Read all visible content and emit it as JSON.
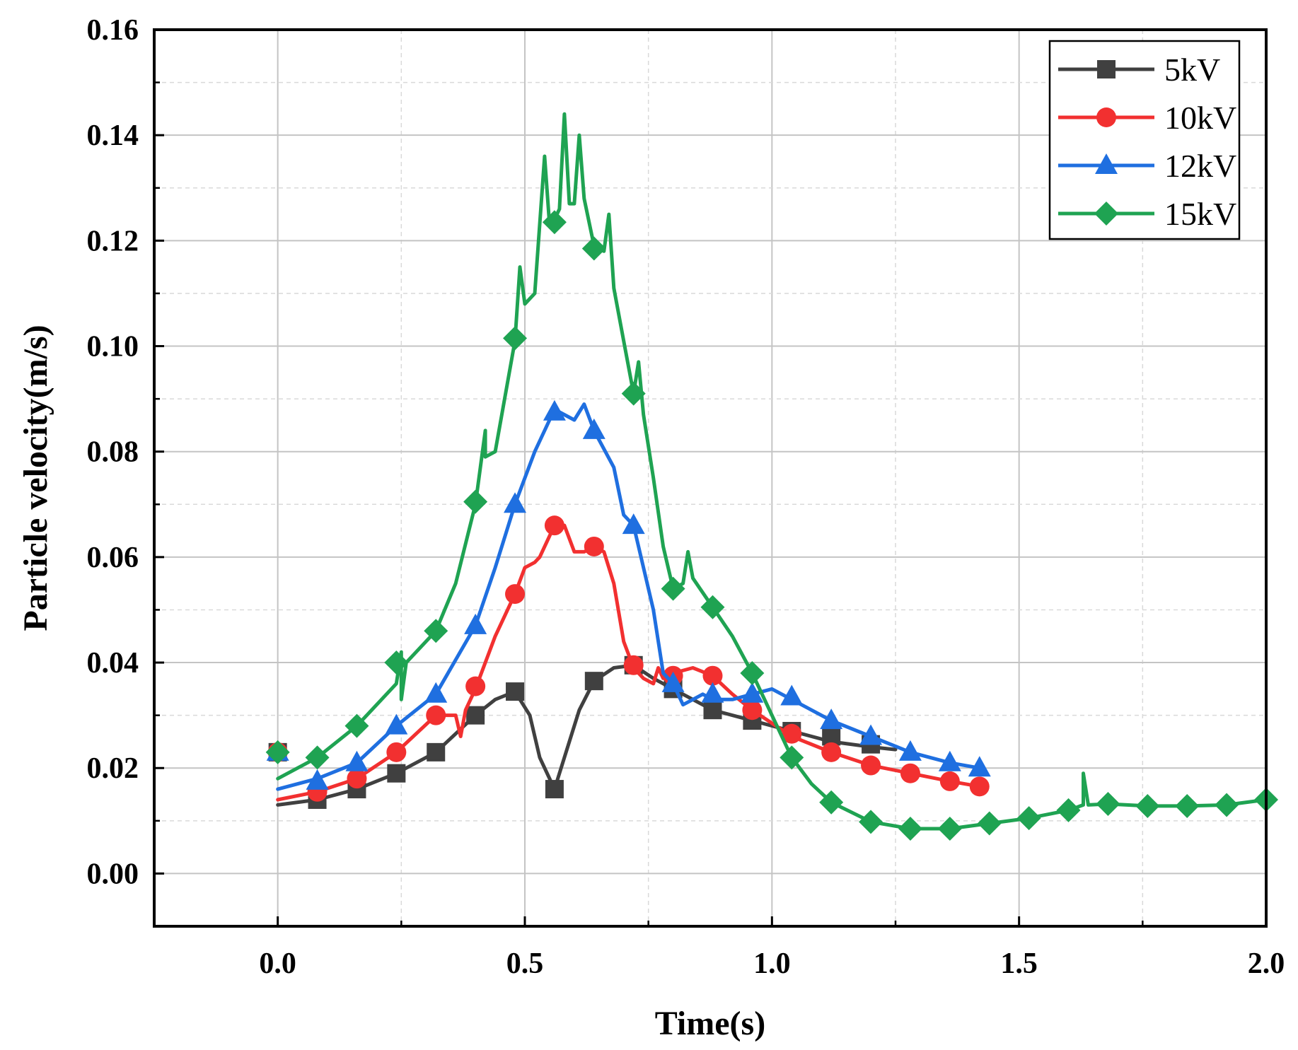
{
  "chart_data": {
    "type": "line",
    "title": "",
    "xlabel": "Time(s)",
    "ylabel": "Particle velocity(m/s)",
    "xlim": [
      -0.25,
      2.0
    ],
    "ylim": [
      -0.01,
      0.16
    ],
    "xticks": [
      0.0,
      0.5,
      1.0,
      1.5,
      2.0
    ],
    "xtick_labels": [
      "0.0",
      "0.5",
      "1.0",
      "1.5",
      "2.0"
    ],
    "yticks": [
      0.0,
      0.02,
      0.04,
      0.06,
      0.08,
      0.1,
      0.12,
      0.14,
      0.16
    ],
    "ytick_labels": [
      "0.00",
      "0.02",
      "0.04",
      "0.06",
      "0.08",
      "0.10",
      "0.12",
      "0.14",
      "0.16"
    ],
    "grid": true,
    "legend_position": "top-right",
    "series": [
      {
        "name": "5kV",
        "color": "#404040",
        "marker": "square",
        "line": [
          [
            0.0,
            0.013
          ],
          [
            0.08,
            0.014
          ],
          [
            0.16,
            0.016
          ],
          [
            0.24,
            0.019
          ],
          [
            0.32,
            0.023
          ],
          [
            0.4,
            0.03
          ],
          [
            0.44,
            0.033
          ],
          [
            0.48,
            0.0345
          ],
          [
            0.51,
            0.03
          ],
          [
            0.53,
            0.022
          ],
          [
            0.56,
            0.016
          ],
          [
            0.58,
            0.022
          ],
          [
            0.61,
            0.031
          ],
          [
            0.64,
            0.0365
          ],
          [
            0.68,
            0.039
          ],
          [
            0.72,
            0.0395
          ],
          [
            0.76,
            0.037
          ],
          [
            0.8,
            0.035
          ],
          [
            0.88,
            0.031
          ],
          [
            0.96,
            0.029
          ],
          [
            1.04,
            0.027
          ],
          [
            1.12,
            0.025
          ],
          [
            1.2,
            0.024
          ],
          [
            1.25,
            0.0235
          ]
        ],
        "markers": [
          [
            0.0,
            0.023
          ],
          [
            0.08,
            0.014
          ],
          [
            0.16,
            0.016
          ],
          [
            0.24,
            0.019
          ],
          [
            0.32,
            0.023
          ],
          [
            0.4,
            0.03
          ],
          [
            0.48,
            0.0345
          ],
          [
            0.56,
            0.016
          ],
          [
            0.64,
            0.0365
          ],
          [
            0.72,
            0.0395
          ],
          [
            0.8,
            0.035
          ],
          [
            0.88,
            0.031
          ],
          [
            0.96,
            0.029
          ],
          [
            1.04,
            0.027
          ],
          [
            1.12,
            0.026
          ],
          [
            1.2,
            0.0245
          ]
        ]
      },
      {
        "name": "10kV",
        "color": "#f23030",
        "marker": "circle",
        "line": [
          [
            0.0,
            0.014
          ],
          [
            0.08,
            0.0155
          ],
          [
            0.16,
            0.018
          ],
          [
            0.24,
            0.023
          ],
          [
            0.32,
            0.03
          ],
          [
            0.36,
            0.03
          ],
          [
            0.37,
            0.026
          ],
          [
            0.38,
            0.031
          ],
          [
            0.4,
            0.035
          ],
          [
            0.44,
            0.045
          ],
          [
            0.48,
            0.053
          ],
          [
            0.5,
            0.058
          ],
          [
            0.52,
            0.059
          ],
          [
            0.53,
            0.06
          ],
          [
            0.56,
            0.066
          ],
          [
            0.58,
            0.066
          ],
          [
            0.6,
            0.061
          ],
          [
            0.62,
            0.061
          ],
          [
            0.64,
            0.062
          ],
          [
            0.66,
            0.061
          ],
          [
            0.68,
            0.055
          ],
          [
            0.7,
            0.044
          ],
          [
            0.72,
            0.039
          ],
          [
            0.74,
            0.037
          ],
          [
            0.76,
            0.036
          ],
          [
            0.77,
            0.039
          ],
          [
            0.78,
            0.037
          ],
          [
            0.8,
            0.038
          ],
          [
            0.84,
            0.039
          ],
          [
            0.88,
            0.0375
          ],
          [
            0.92,
            0.034
          ],
          [
            0.96,
            0.031
          ],
          [
            1.04,
            0.026
          ],
          [
            1.12,
            0.023
          ],
          [
            1.2,
            0.0205
          ],
          [
            1.28,
            0.019
          ],
          [
            1.36,
            0.0175
          ],
          [
            1.42,
            0.0165
          ]
        ],
        "markers": [
          [
            0.0,
            0.023
          ],
          [
            0.08,
            0.0155
          ],
          [
            0.16,
            0.018
          ],
          [
            0.24,
            0.023
          ],
          [
            0.32,
            0.03
          ],
          [
            0.4,
            0.0355
          ],
          [
            0.48,
            0.053
          ],
          [
            0.56,
            0.066
          ],
          [
            0.64,
            0.062
          ],
          [
            0.72,
            0.0395
          ],
          [
            0.8,
            0.0375
          ],
          [
            0.88,
            0.0375
          ],
          [
            0.96,
            0.031
          ],
          [
            1.04,
            0.0265
          ],
          [
            1.12,
            0.023
          ],
          [
            1.2,
            0.0205
          ],
          [
            1.28,
            0.019
          ],
          [
            1.36,
            0.0175
          ],
          [
            1.42,
            0.0165
          ]
        ]
      },
      {
        "name": "12kV",
        "color": "#1f6fe0",
        "marker": "triangle",
        "line": [
          [
            0.0,
            0.016
          ],
          [
            0.08,
            0.018
          ],
          [
            0.16,
            0.021
          ],
          [
            0.24,
            0.028
          ],
          [
            0.32,
            0.034
          ],
          [
            0.4,
            0.047
          ],
          [
            0.44,
            0.058
          ],
          [
            0.48,
            0.07
          ],
          [
            0.52,
            0.08
          ],
          [
            0.56,
            0.088
          ],
          [
            0.6,
            0.086
          ],
          [
            0.62,
            0.089
          ],
          [
            0.64,
            0.084
          ],
          [
            0.68,
            0.077
          ],
          [
            0.7,
            0.068
          ],
          [
            0.72,
            0.066
          ],
          [
            0.76,
            0.05
          ],
          [
            0.78,
            0.038
          ],
          [
            0.8,
            0.036
          ],
          [
            0.82,
            0.032
          ],
          [
            0.84,
            0.033
          ],
          [
            0.86,
            0.034
          ],
          [
            0.88,
            0.033
          ],
          [
            0.92,
            0.033
          ],
          [
            0.96,
            0.034
          ],
          [
            1.0,
            0.035
          ],
          [
            1.04,
            0.033
          ],
          [
            1.12,
            0.029
          ],
          [
            1.2,
            0.026
          ],
          [
            1.28,
            0.023
          ],
          [
            1.36,
            0.021
          ],
          [
            1.42,
            0.02
          ]
        ],
        "markers": [
          [
            0.0,
            0.023
          ],
          [
            0.08,
            0.0175
          ],
          [
            0.16,
            0.021
          ],
          [
            0.24,
            0.028
          ],
          [
            0.32,
            0.034
          ],
          [
            0.4,
            0.047
          ],
          [
            0.48,
            0.07
          ],
          [
            0.56,
            0.0875
          ],
          [
            0.64,
            0.084
          ],
          [
            0.72,
            0.066
          ],
          [
            0.8,
            0.036
          ],
          [
            0.88,
            0.034
          ],
          [
            0.96,
            0.034
          ],
          [
            1.04,
            0.0335
          ],
          [
            1.12,
            0.029
          ],
          [
            1.2,
            0.026
          ],
          [
            1.28,
            0.023
          ],
          [
            1.36,
            0.021
          ],
          [
            1.42,
            0.02
          ]
        ]
      },
      {
        "name": "15kV",
        "color": "#1fa352",
        "marker": "diamond",
        "line": [
          [
            0.0,
            0.018
          ],
          [
            0.08,
            0.022
          ],
          [
            0.16,
            0.028
          ],
          [
            0.24,
            0.036
          ],
          [
            0.25,
            0.042
          ],
          [
            0.25,
            0.033
          ],
          [
            0.26,
            0.04
          ],
          [
            0.32,
            0.046
          ],
          [
            0.36,
            0.055
          ],
          [
            0.4,
            0.07
          ],
          [
            0.41,
            0.077
          ],
          [
            0.42,
            0.084
          ],
          [
            0.42,
            0.079
          ],
          [
            0.44,
            0.08
          ],
          [
            0.48,
            0.101
          ],
          [
            0.49,
            0.115
          ],
          [
            0.5,
            0.108
          ],
          [
            0.52,
            0.11
          ],
          [
            0.54,
            0.136
          ],
          [
            0.55,
            0.123
          ],
          [
            0.56,
            0.124
          ],
          [
            0.57,
            0.126
          ],
          [
            0.58,
            0.144
          ],
          [
            0.59,
            0.127
          ],
          [
            0.6,
            0.127
          ],
          [
            0.61,
            0.14
          ],
          [
            0.62,
            0.128
          ],
          [
            0.64,
            0.119
          ],
          [
            0.66,
            0.118
          ],
          [
            0.67,
            0.125
          ],
          [
            0.68,
            0.111
          ],
          [
            0.7,
            0.101
          ],
          [
            0.72,
            0.091
          ],
          [
            0.73,
            0.097
          ],
          [
            0.74,
            0.087
          ],
          [
            0.76,
            0.075
          ],
          [
            0.78,
            0.062
          ],
          [
            0.8,
            0.054
          ],
          [
            0.82,
            0.055
          ],
          [
            0.83,
            0.061
          ],
          [
            0.84,
            0.056
          ],
          [
            0.88,
            0.0505
          ],
          [
            0.92,
            0.045
          ],
          [
            0.96,
            0.038
          ],
          [
            1.0,
            0.03
          ],
          [
            1.04,
            0.022
          ],
          [
            1.08,
            0.017
          ],
          [
            1.12,
            0.0135
          ],
          [
            1.2,
            0.0098
          ],
          [
            1.28,
            0.0085
          ],
          [
            1.36,
            0.0085
          ],
          [
            1.44,
            0.0095
          ],
          [
            1.52,
            0.0105
          ],
          [
            1.6,
            0.012
          ],
          [
            1.63,
            0.013
          ],
          [
            1.63,
            0.019
          ],
          [
            1.64,
            0.013
          ],
          [
            1.68,
            0.0132
          ],
          [
            1.76,
            0.0128
          ],
          [
            1.84,
            0.0128
          ],
          [
            1.92,
            0.013
          ],
          [
            2.0,
            0.014
          ]
        ],
        "markers": [
          [
            0.0,
            0.023
          ],
          [
            0.08,
            0.022
          ],
          [
            0.16,
            0.028
          ],
          [
            0.24,
            0.04
          ],
          [
            0.32,
            0.046
          ],
          [
            0.4,
            0.0705
          ],
          [
            0.48,
            0.1015
          ],
          [
            0.56,
            0.1235
          ],
          [
            0.64,
            0.1185
          ],
          [
            0.72,
            0.091
          ],
          [
            0.8,
            0.054
          ],
          [
            0.88,
            0.0505
          ],
          [
            0.96,
            0.038
          ],
          [
            1.04,
            0.022
          ],
          [
            1.12,
            0.0135
          ],
          [
            1.2,
            0.0098
          ],
          [
            1.28,
            0.0085
          ],
          [
            1.36,
            0.0085
          ],
          [
            1.44,
            0.0095
          ],
          [
            1.52,
            0.0105
          ],
          [
            1.6,
            0.012
          ],
          [
            1.68,
            0.0132
          ],
          [
            1.76,
            0.0128
          ],
          [
            1.84,
            0.0128
          ],
          [
            1.92,
            0.013
          ],
          [
            2.0,
            0.014
          ]
        ]
      }
    ]
  }
}
